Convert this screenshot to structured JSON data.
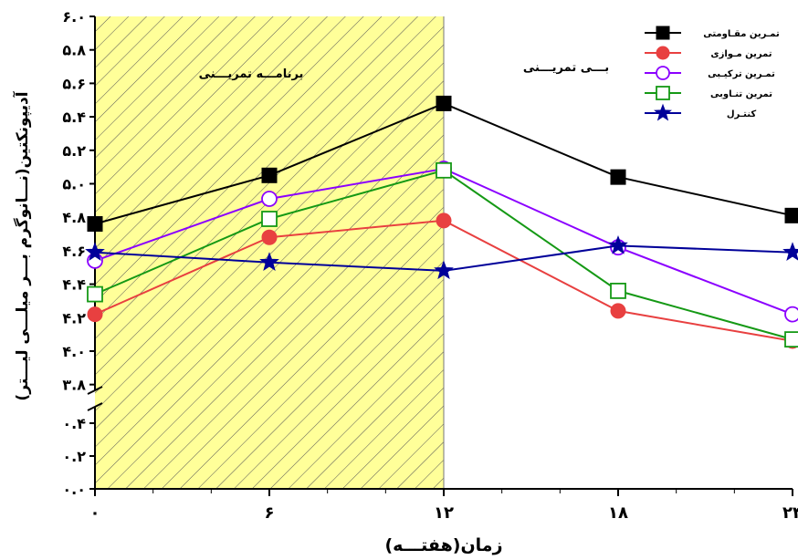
{
  "chart_data": {
    "type": "line",
    "xlabel": "زمان(هفتـــه)",
    "ylabel": "آدیپونکتین(نـــانوگرم بـــر میلـــی لیـــتر)",
    "x": [
      0,
      6,
      12,
      18,
      24
    ],
    "xticks": [
      "۰",
      "۶",
      "۱۲",
      "۱۸",
      "۲۴"
    ],
    "upper_yticks": [
      {
        "v": 3.8,
        "label": "۳.۸"
      },
      {
        "v": 4.0,
        "label": "۴.۰"
      },
      {
        "v": 4.2,
        "label": "۴.۲"
      },
      {
        "v": 4.4,
        "label": "۴.۴"
      },
      {
        "v": 4.6,
        "label": "۴.۶"
      },
      {
        "v": 4.8,
        "label": "۴.۸"
      },
      {
        "v": 5.0,
        "label": "۵.۰"
      },
      {
        "v": 5.2,
        "label": "۵.۲"
      },
      {
        "v": 5.4,
        "label": "۵.۴"
      },
      {
        "v": 5.6,
        "label": "۵.۶"
      },
      {
        "v": 5.8,
        "label": "۵.۸"
      },
      {
        "v": 6.0,
        "label": "۶.۰"
      }
    ],
    "lower_yticks": [
      {
        "v": 0.0,
        "label": "۰.۰"
      },
      {
        "v": 0.2,
        "label": "۰.۲"
      },
      {
        "v": 0.4,
        "label": "۰.۴"
      }
    ],
    "ylim_upper": [
      3.7,
      6.0
    ],
    "ylim_lower": [
      0.0,
      0.45
    ],
    "y_axis_break": true,
    "shaded_region": {
      "x_from": 0,
      "x_to": 12,
      "label": "برنامـــه تمریـــنی",
      "color": "#ffff99"
    },
    "unshaded_label": "بـــی تمریـــنی",
    "legend_position": "top-right",
    "series": [
      {
        "name": "تمـرین مقـاومتی",
        "color": "#000000",
        "marker": "square-filled",
        "values": [
          4.76,
          5.05,
          5.48,
          5.04,
          4.81
        ]
      },
      {
        "name": "تمرین مـوازی",
        "color": "#e84040",
        "marker": "circle-filled",
        "values": [
          4.22,
          4.68,
          4.78,
          4.24,
          4.06
        ]
      },
      {
        "name": "تمـرین ترکیـبی",
        "color": "#8b00ff",
        "marker": "circle-open",
        "values": [
          4.54,
          4.91,
          5.09,
          4.62,
          4.22
        ]
      },
      {
        "name": "تمرین تنـاوبی",
        "color": "#159915",
        "marker": "square-open",
        "values": [
          4.34,
          4.79,
          5.08,
          4.36,
          4.07
        ]
      },
      {
        "name": "کنتـرل",
        "color": "#000099",
        "marker": "star",
        "values": [
          4.59,
          4.53,
          4.48,
          4.63,
          4.59
        ]
      }
    ]
  }
}
